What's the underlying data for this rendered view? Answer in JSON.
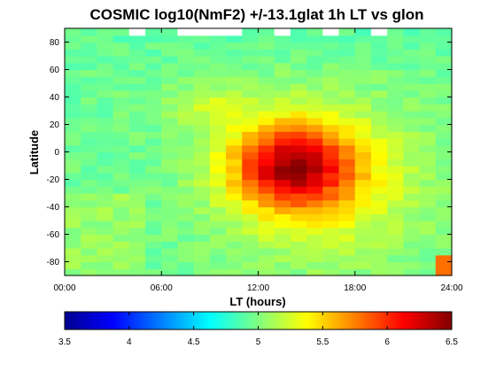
{
  "chart_data": {
    "type": "heatmap",
    "title": "COSMIC log10(NmF2) +/-13.1glat 1h LT vs glon",
    "xlabel": "LT (hours)",
    "ylabel": "Latitude",
    "xlim": [
      0,
      24
    ],
    "ylim": [
      -90,
      90
    ],
    "x_ticks": [
      0,
      6,
      12,
      18,
      24
    ],
    "x_tick_labels": [
      "00:00",
      "06:00",
      "12:00",
      "18:00",
      "24:00"
    ],
    "y_ticks": [
      -80,
      -60,
      -40,
      -20,
      0,
      20,
      40,
      60,
      80
    ],
    "y_tick_labels": [
      "-80",
      "-60",
      "-40",
      "-20",
      "0",
      "20",
      "40",
      "60",
      "80"
    ],
    "colormap": "jet",
    "colorbar": {
      "range": [
        3.5,
        6.5
      ],
      "ticks": [
        3.5,
        4,
        4.5,
        5,
        5.5,
        6,
        6.5
      ],
      "tick_labels": [
        "3.5",
        "4",
        "4.5",
        "5",
        "5.5",
        "6",
        "6.5"
      ]
    },
    "grid": false,
    "x_bin_hours": 1,
    "y_bin_degrees": 5,
    "z_description": "log10(NmF2) estimated per 1h LT x 5 deg latitude bin",
    "peak": {
      "lt_hours": 14,
      "lat": -10,
      "value": 6.15
    },
    "missing_bins": [
      {
        "lt_from": 4,
        "lt_to": 5,
        "lat_from": 85,
        "lat_to": 90
      },
      {
        "lt_from": 7,
        "lt_to": 11,
        "lat_from": 85,
        "lat_to": 90
      },
      {
        "lt_from": 13,
        "lt_to": 14,
        "lat_from": 85,
        "lat_to": 90
      },
      {
        "lt_from": 16,
        "lt_to": 17,
        "lat_from": 85,
        "lat_to": 90
      },
      {
        "lt_from": 19,
        "lt_to": 20,
        "lat_from": 85,
        "lat_to": 90
      }
    ]
  }
}
